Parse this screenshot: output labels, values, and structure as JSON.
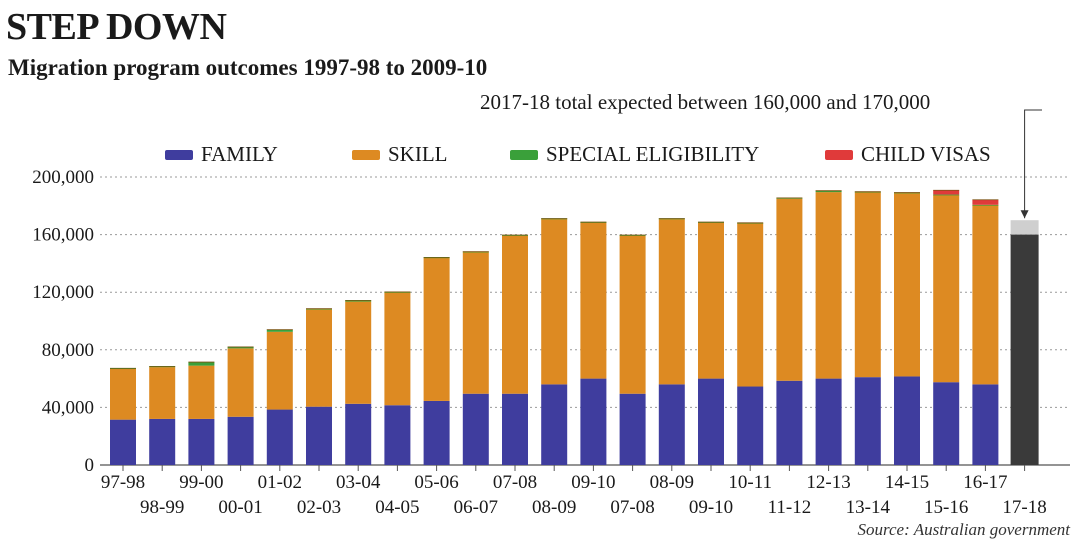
{
  "chart_data": {
    "type": "bar",
    "stacked": true,
    "title": "STEP DOWN",
    "subtitle": "Migration program outcomes 1997-98 to 2009-10",
    "note": "2017-18 total expected between 160,000 and 170,000",
    "source": "Source: Australian government",
    "xlabel": "",
    "ylabel": "",
    "ylim": [
      0,
      200000
    ],
    "yticks": [
      0,
      40000,
      80000,
      120000,
      160000,
      200000
    ],
    "ytick_labels": [
      "0",
      "40,000",
      "80,000",
      "120,000",
      "160,000",
      "200,000"
    ],
    "categories": [
      "97-98",
      "98-99",
      "99-00",
      "00-01",
      "01-02",
      "02-03",
      "03-04",
      "04-05",
      "05-06",
      "06-07",
      "07-08",
      "08-09",
      "09-10",
      "07-08",
      "08-09",
      "09-10",
      "10-11",
      "11-12",
      "12-13",
      "13-14",
      "14-15",
      "15-16",
      "16-17",
      "17-18"
    ],
    "series": [
      {
        "name": "FAMILY",
        "color": "#3f3d9e",
        "values": [
          31500,
          32000,
          32000,
          33500,
          38500,
          40500,
          42500,
          41500,
          44500,
          49500,
          49500,
          56000,
          60000,
          49500,
          56000,
          60000,
          54500,
          58500,
          60000,
          61000,
          61500,
          57500,
          56000,
          0
        ]
      },
      {
        "name": "SKILL",
        "color": "#dd8a22",
        "values": [
          35500,
          36000,
          37000,
          47500,
          54000,
          67500,
          71000,
          78500,
          99500,
          98500,
          110000,
          115000,
          108500,
          110000,
          115000,
          108500,
          113500,
          126500,
          129500,
          128500,
          127500,
          130000,
          124500,
          0
        ]
      },
      {
        "name": "SPECIAL ELIGIBILITY",
        "color": "#3aa03a",
        "values": [
          200,
          500,
          2500,
          1000,
          1500,
          600,
          800,
          200,
          200,
          200,
          200,
          200,
          200,
          200,
          200,
          200,
          200,
          500,
          1000,
          300,
          200,
          300,
          200,
          0
        ]
      },
      {
        "name": "CHILD VISAS",
        "color": "#e03a3a",
        "values": [
          0,
          0,
          0,
          0,
          0,
          0,
          0,
          0,
          0,
          0,
          0,
          0,
          0,
          0,
          0,
          0,
          0,
          0,
          0,
          0,
          0,
          3000,
          3500,
          0
        ]
      }
    ],
    "projection": {
      "category": "17-18",
      "low": 160000,
      "high": 170000,
      "color_low": "#3a3a3a",
      "color_range": "#cfcfcf"
    }
  }
}
